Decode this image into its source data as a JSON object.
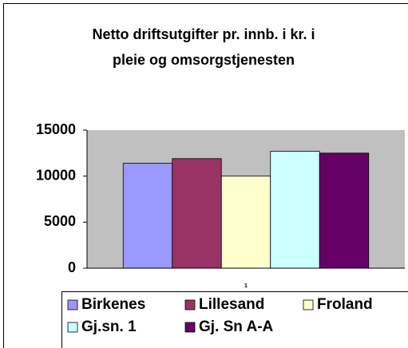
{
  "chart_data": {
    "type": "bar",
    "title": [
      "Netto driftsutgifter pr. innb. i kr. i",
      "pleie og omsorgstjenesten"
    ],
    "categories": [
      "1"
    ],
    "series": [
      {
        "name": "Birkenes",
        "color": "#9999ff",
        "values": [
          11400
        ]
      },
      {
        "name": "Lillesand",
        "color": "#993366",
        "values": [
          11900
        ]
      },
      {
        "name": "Froland",
        "color": "#ffffcc",
        "values": [
          10000
        ]
      },
      {
        "name": "Gj.sn. 1",
        "color": "#ccffff",
        "values": [
          12700
        ]
      },
      {
        "name": "Gj. Sn A-A",
        "color": "#660066",
        "values": [
          12500
        ]
      }
    ],
    "ylim": [
      0,
      15000
    ],
    "yticks": [
      0,
      5000,
      10000,
      15000
    ],
    "plot_background": "#c0c0c0",
    "legend": "bottom"
  }
}
